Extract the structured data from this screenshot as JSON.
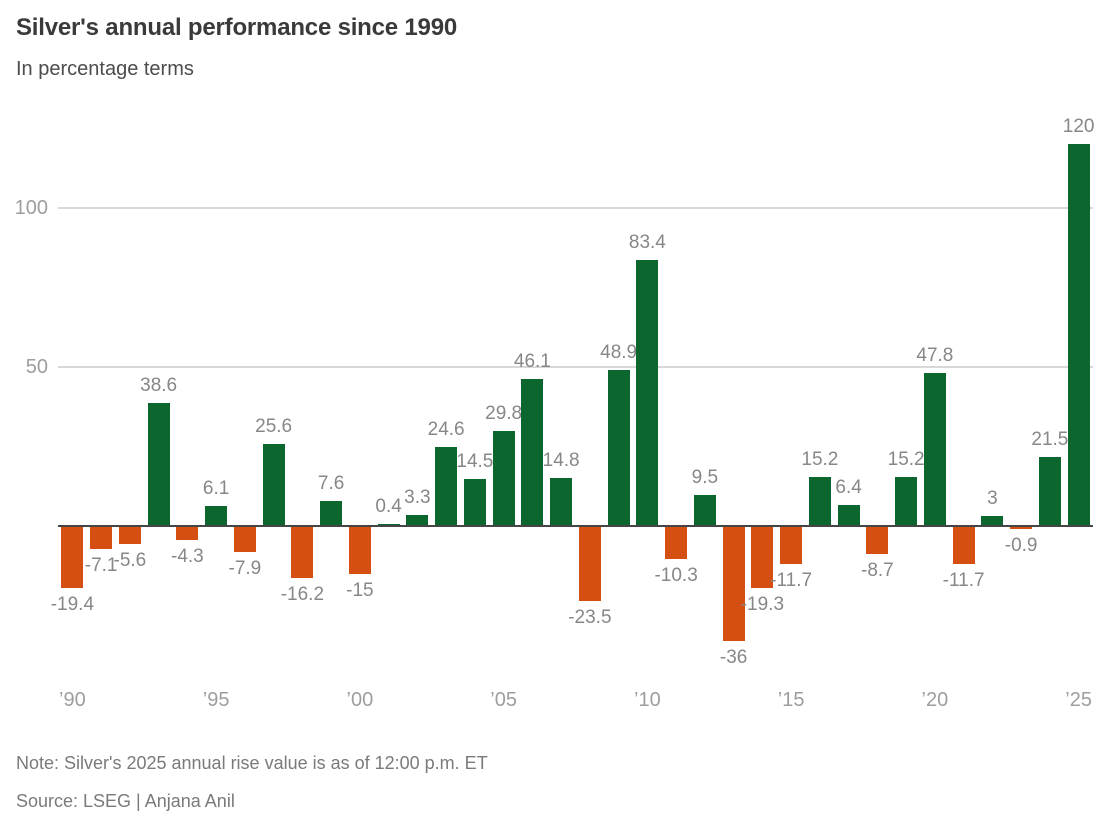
{
  "header": {
    "title": "Silver's annual performance since 1990",
    "subtitle": "In percentage terms"
  },
  "footer": {
    "note": "Note: Silver's 2025 annual rise value is as of 12:00 p.m. ET",
    "source": "Source: LSEG | Anjana Anil"
  },
  "colors": {
    "positive_bar": "#0b672e",
    "negative_bar": "#d54e12",
    "gridline": "#d8d8d8",
    "zero_axis": "#454545",
    "value_label": "#878787",
    "axis_tick": "#9e9e9e",
    "title": "#3a3a3a",
    "subtitle": "#4c4c4c"
  },
  "chart_data": {
    "type": "bar",
    "title": "Silver's annual performance since 1990",
    "subtitle": "In percentage terms",
    "xlabel": "",
    "ylabel": "",
    "x": [
      1990,
      1991,
      1992,
      1993,
      1994,
      1995,
      1996,
      1997,
      1998,
      1999,
      2000,
      2001,
      2002,
      2003,
      2004,
      2005,
      2006,
      2007,
      2008,
      2009,
      2010,
      2011,
      2012,
      2013,
      2014,
      2015,
      2016,
      2017,
      2018,
      2019,
      2020,
      2021,
      2022,
      2023,
      2024,
      2025
    ],
    "values": [
      -19.4,
      -7.1,
      -5.6,
      38.6,
      -4.3,
      6.1,
      -7.9,
      25.6,
      -16.2,
      7.6,
      -15,
      0.4,
      3.3,
      24.6,
      14.5,
      29.8,
      46.1,
      14.8,
      -23.5,
      48.9,
      83.4,
      -10.3,
      9.5,
      -36,
      -19.3,
      -11.7,
      15.2,
      6.4,
      -8.7,
      15.2,
      47.8,
      -11.7,
      3,
      -0.9,
      21.5,
      120
    ],
    "value_labels": [
      "-19.4",
      "-7.1",
      "-5.6",
      "38.6",
      "-4.3",
      "6.1",
      "-7.9",
      "25.6",
      "-16.2",
      "7.6",
      "-15",
      "0.4",
      "3.3",
      "24.6",
      "14.5",
      "29.8",
      "46.1",
      "14.8",
      "-23.5",
      "48.9",
      "83.4",
      "-10.3",
      "9.5",
      "-36",
      "-19.3",
      "-11.7",
      "15.2",
      "6.4",
      "-8.7",
      "15.2",
      "47.8",
      "-11.7",
      "3",
      "-0.9",
      "21.5",
      "120"
    ],
    "x_tick_years": [
      1990,
      1995,
      2000,
      2005,
      2010,
      2015,
      2020,
      2025
    ],
    "x_tick_labels": [
      "’90",
      "’95",
      "’00",
      "’05",
      "’10",
      "’15",
      "’20",
      "’25"
    ],
    "y_ticks": [
      50,
      100
    ],
    "y_tick_labels": [
      "50",
      "100"
    ],
    "ylim": [
      -40,
      125
    ],
    "grid": "horizontal",
    "legend": "none",
    "color_rule": "green-positive-orange-negative"
  }
}
